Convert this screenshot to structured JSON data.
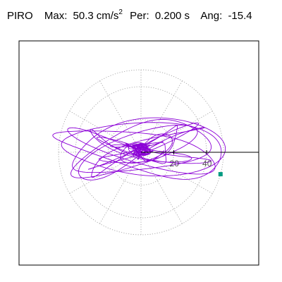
{
  "header": {
    "station": "PIRO",
    "max_label": "Max:",
    "max_value": "50.3",
    "max_unit": "cm/s",
    "max_exp": "2",
    "per_label": "Per:",
    "per_value": "0.200 s",
    "ang_label": "Ang:",
    "ang_value": "-15.4"
  },
  "chart_data": {
    "type": "polar-orbit",
    "ring_labels": [
      "20",
      "40"
    ],
    "max_radius": 50.3,
    "angle_deg": -15.4,
    "grid": "dotted",
    "colors": {
      "trace": "#8b00d6",
      "grid": "#9a9a9a",
      "marker": "#009b82"
    },
    "marker": {
      "x": 50.3,
      "y": -15.4
    }
  }
}
